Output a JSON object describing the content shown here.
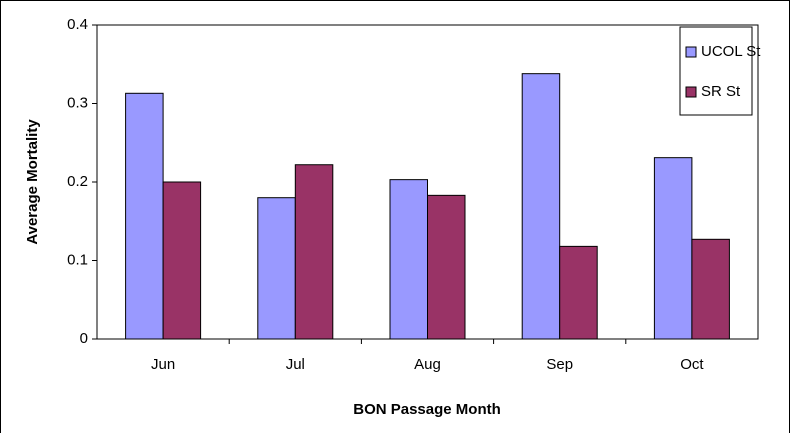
{
  "chart_data": {
    "type": "bar",
    "xlabel": "BON Passage Month",
    "ylabel": "Average Mortality",
    "categories": [
      "Jun",
      "Jul",
      "Aug",
      "Sep",
      "Oct"
    ],
    "series": [
      {
        "name": "UCOL St",
        "color": "#9999ff",
        "values": [
          0.313,
          0.18,
          0.203,
          0.338,
          0.231
        ]
      },
      {
        "name": "SR St",
        "color": "#993366",
        "values": [
          0.2,
          0.222,
          0.183,
          0.118,
          0.127
        ]
      }
    ],
    "ylim": [
      0,
      0.4
    ],
    "yticks": [
      0,
      0.1,
      0.2,
      0.3,
      0.4
    ],
    "legend": "upper right"
  }
}
